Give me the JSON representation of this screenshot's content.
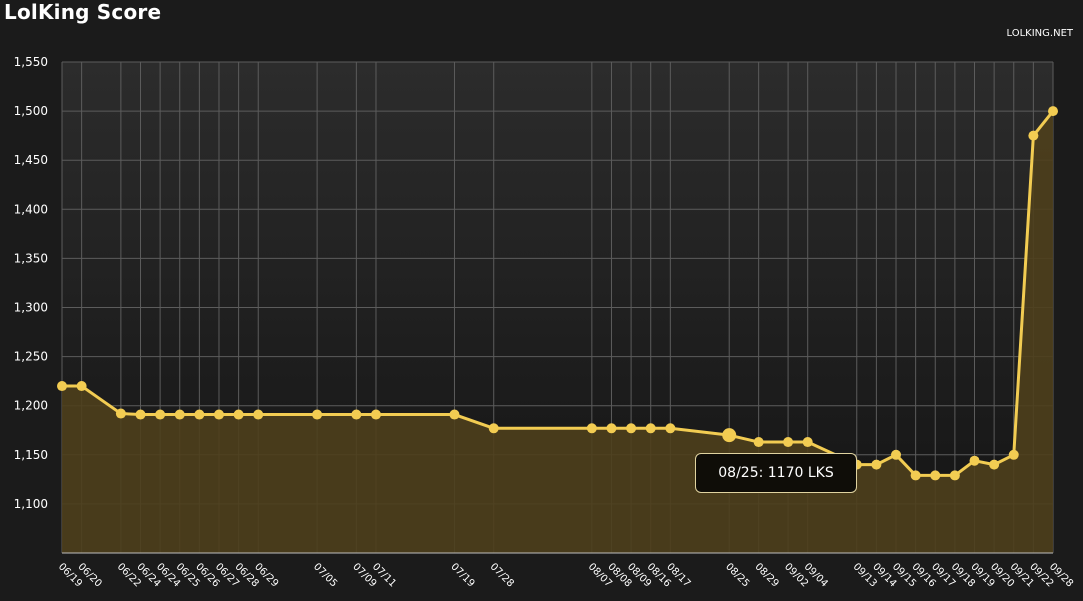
{
  "chart_data": {
    "type": "area",
    "title": "LolKing Score",
    "credit": "LOLKING.NET",
    "ylim": [
      1050,
      1550
    ],
    "yticks": [
      "1,100",
      "1,150",
      "1,200",
      "1,250",
      "1,300",
      "1,350",
      "1,400",
      "1,450",
      "1,500",
      "1,550"
    ],
    "ytick_values": [
      1100,
      1150,
      1200,
      1250,
      1300,
      1350,
      1400,
      1450,
      1500,
      1550
    ],
    "x": [
      "06/19",
      "06/20",
      "06/22",
      "06/24",
      "06/24",
      "06/25",
      "06/26",
      "06/27",
      "06/28",
      "06/29",
      "07/05",
      "07/09",
      "07/11",
      "07/19",
      "07/28",
      "08/07",
      "08/08",
      "08/09",
      "08/16",
      "08/17",
      "08/25",
      "08/29",
      "09/02",
      "09/04",
      "09/13",
      "09/14",
      "09/15",
      "09/16",
      "09/17",
      "09/18",
      "09/19",
      "09/20",
      "09/21",
      "09/22",
      "09/28"
    ],
    "x_days": [
      0,
      1,
      3,
      4,
      5,
      6,
      7,
      8,
      9,
      10,
      13,
      15,
      16,
      20,
      22,
      27,
      28,
      29,
      30,
      31,
      34,
      35.5,
      37,
      38,
      40.5,
      41.5,
      42.5,
      43.5,
      44.5,
      45.5,
      46.5,
      47.5,
      48.5,
      49.5,
      50.5
    ],
    "values": [
      1220,
      1220,
      1192,
      1191,
      1191,
      1191,
      1191,
      1191,
      1191,
      1191,
      1191,
      1191,
      1191,
      1191,
      1177,
      1177,
      1177,
      1177,
      1177,
      1177,
      1170,
      1163,
      1163,
      1163,
      1140,
      1140,
      1150,
      1129,
      1129,
      1129,
      1144,
      1140,
      1150,
      1475,
      1500
    ],
    "grid": true,
    "legend": "none",
    "colors": {
      "line": "#f2cc52",
      "fill": "#4e3f1c",
      "grid": "#5c5c5c",
      "background": "#1b1b1b"
    },
    "tooltip": {
      "index": 20,
      "text": "08/25: 1170 LKS"
    }
  }
}
